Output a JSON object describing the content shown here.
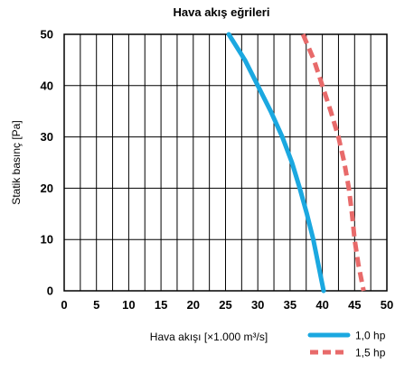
{
  "chart_data": {
    "type": "line",
    "title": "Hava akış eğrileri",
    "xlabel": "Hava akışı [×1.000 m³/s]",
    "ylabel": "Statik basınç  [Pa]",
    "xlim": [
      0,
      50
    ],
    "ylim": [
      0,
      50
    ],
    "xticks": [
      "0",
      "5",
      "10",
      "15",
      "20",
      "25",
      "30",
      "35",
      "40",
      "45",
      "50"
    ],
    "yticks": [
      "0",
      "10",
      "20",
      "30",
      "40",
      "50"
    ],
    "x_grid_step": 2.5,
    "y_grid_step": 10,
    "grid": true,
    "legend_position": "bottom-right",
    "series": [
      {
        "name": "1,0 hp",
        "color": "#1ba8e0",
        "dash": "solid",
        "points": [
          [
            25.5,
            50
          ],
          [
            28,
            45
          ],
          [
            30,
            40
          ],
          [
            32,
            35
          ],
          [
            33.8,
            30
          ],
          [
            35.3,
            25
          ],
          [
            36.5,
            20
          ],
          [
            37.6,
            15
          ],
          [
            38.6,
            10
          ],
          [
            39.4,
            5
          ],
          [
            40.2,
            0
          ]
        ]
      },
      {
        "name": "1,5 hp",
        "color": "#e86a6a",
        "dash": "dashed",
        "points": [
          [
            37,
            50
          ],
          [
            38.7,
            45
          ],
          [
            40,
            40
          ],
          [
            41.3,
            35
          ],
          [
            42.5,
            30
          ],
          [
            43.4,
            25
          ],
          [
            44.1,
            20
          ],
          [
            44.6,
            15
          ],
          [
            45,
            10
          ],
          [
            45.6,
            5
          ],
          [
            46.4,
            0
          ]
        ]
      }
    ]
  }
}
